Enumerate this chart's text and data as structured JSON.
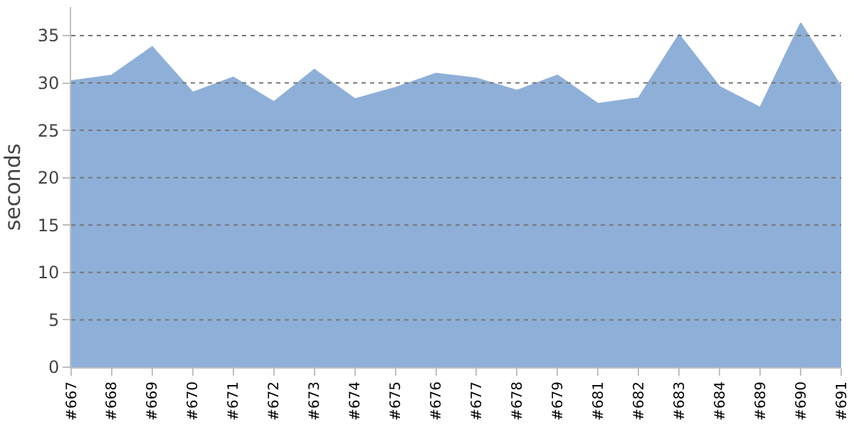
{
  "chart_data": {
    "type": "area",
    "ylabel": "seconds",
    "categories": [
      "#667",
      "#668",
      "#669",
      "#670",
      "#671",
      "#672",
      "#673",
      "#674",
      "#675",
      "#676",
      "#677",
      "#678",
      "#679",
      "#681",
      "#682",
      "#683",
      "#684",
      "#689",
      "#690",
      "#691"
    ],
    "series": [
      {
        "color": "#8eb0d8",
        "values": [
          30.2,
          30.8,
          33.8,
          29.0,
          30.6,
          28.0,
          31.4,
          28.3,
          29.5,
          31.0,
          30.5,
          29.2,
          30.8,
          27.8,
          28.4,
          35.1,
          29.6,
          27.4,
          36.3,
          29.6
        ]
      }
    ],
    "ylim": [
      0,
      38
    ],
    "yticks": [
      0,
      5,
      10,
      15,
      20,
      25,
      30,
      35
    ],
    "grid": "y"
  }
}
